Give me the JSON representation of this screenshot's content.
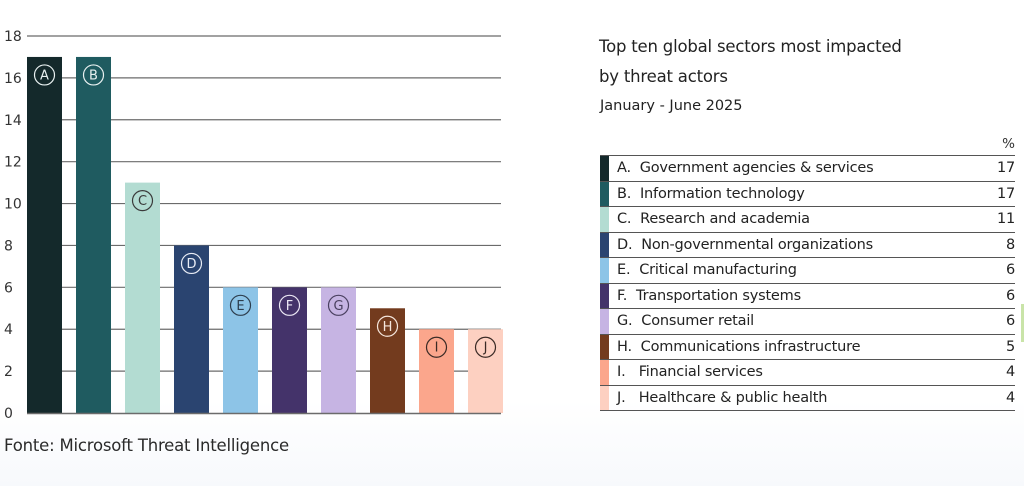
{
  "chart_data": {
    "type": "bar",
    "title": "Top ten global sectors most impacted by threat actors",
    "subtitle": "January - June 2025",
    "xlabel": "",
    "ylabel": "",
    "ylim": [
      0,
      18
    ],
    "yticks": [
      0,
      2,
      4,
      6,
      8,
      10,
      12,
      14,
      16,
      18
    ],
    "grid": true,
    "categories": [
      "A",
      "B",
      "C",
      "D",
      "E",
      "F",
      "G",
      "H",
      "I",
      "J"
    ],
    "values": [
      17,
      17,
      11,
      8,
      6,
      6,
      6,
      5,
      4,
      4
    ],
    "colors": [
      "#14292b",
      "#1f5b60",
      "#b3dcd2",
      "#2a4470",
      "#8dc4e7",
      "#44336a",
      "#c6b4e3",
      "#733b1e",
      "#fba68c",
      "#fdd0c1"
    ],
    "letter_colors": [
      "#e8f0f0",
      "#e8f0f0",
      "#3a3a3a",
      "#e8ecf5",
      "#2d3d4d",
      "#ece8f5",
      "#4a4060",
      "#f5e6dc",
      "#3a2a25",
      "#3a2a25"
    ],
    "legend": {
      "placement": "right",
      "header": "%",
      "entries": [
        {
          "label": "A.  Government agencies & services",
          "value": "17"
        },
        {
          "label": "B.  Information technology",
          "value": "17"
        },
        {
          "label": "C.  Research and academia",
          "value": "11"
        },
        {
          "label": "D.  Non-governmental organizations",
          "value": "8"
        },
        {
          "label": "E.  Critical manufacturing",
          "value": "6"
        },
        {
          "label": "F.  Transportation systems",
          "value": "6"
        },
        {
          "label": "G.  Consumer retail",
          "value": "6"
        },
        {
          "label": "H.  Communications infrastructure",
          "value": "5"
        },
        {
          "label": "I.   Financial services",
          "value": "4"
        },
        {
          "label": "J.   Healthcare & public health",
          "value": "4"
        }
      ]
    }
  },
  "source": "Fonte: Microsoft Threat Intelligence",
  "title_line1": "Top ten global sectors most impacted",
  "title_line2": "by threat actors"
}
